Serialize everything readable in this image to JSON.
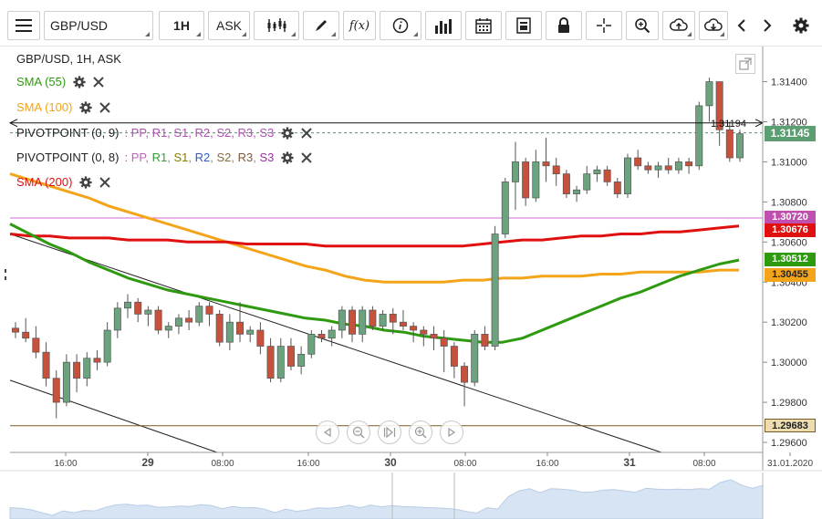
{
  "toolbar": {
    "symbol": "GBP/USD",
    "timeframe": "1H",
    "price_type": "ASK",
    "fx_label": "f(x)"
  },
  "legend": {
    "symbol_line": "GBP/USD, 1H, ASK",
    "sma55": {
      "label": "SMA (55)",
      "color": "#2e9a10"
    },
    "sma100": {
      "label": "SMA (100)",
      "color": "#f4a418"
    },
    "pivot9": {
      "label": "PIVOTPOINT (0, 9)",
      "params": ": PP, R1, S1, R2, S2, R3, S3"
    },
    "pivot8": {
      "label": "PIVOTPOINT (0, 8)",
      "params_prefix": ": ",
      "items": [
        {
          "text": "PP",
          "color": "#c060c0"
        },
        {
          "text": "R1",
          "color": "#3a9a3a"
        },
        {
          "text": "S1",
          "color": "#8a7a00"
        },
        {
          "text": "R2",
          "color": "#3060c0"
        },
        {
          "text": "S2",
          "color": "#8a6a40"
        },
        {
          "text": "R3",
          "color": "#7a5a3a"
        },
        {
          "text": "S3",
          "color": "#9a30a0"
        }
      ]
    },
    "sma200": {
      "label": "SMA (200)",
      "color": "#e01010"
    }
  },
  "price_axis": {
    "ticks": [
      "1.31400",
      "1.31200",
      "1.31000",
      "1.30800",
      "1.30600",
      "1.30400",
      "1.30200",
      "1.30000",
      "1.29800",
      "1.29600"
    ],
    "current_price": "1.31145",
    "crosshair_price": "1.31194",
    "tags": [
      {
        "value": "1.30720",
        "color": "#c050b0"
      },
      {
        "value": "1.30676",
        "color": "#e01010"
      },
      {
        "value": "1.30512",
        "color": "#2e9a10"
      },
      {
        "value": "1.30455",
        "color": "#f4a418"
      },
      {
        "value": "1.29683",
        "color": "#7a5a20"
      }
    ]
  },
  "time_axis": {
    "labels": [
      "16:00",
      "29",
      "08:00",
      "16:00",
      "30",
      "08:00",
      "16:00",
      "31",
      "08:00",
      "31.01.2020"
    ]
  },
  "chart_data": {
    "type": "candlestick",
    "ylim": [
      1.2955,
      1.3158
    ],
    "candles": [
      [
        1.3017,
        1.302,
        1.3012,
        1.3015
      ],
      [
        1.3015,
        1.3022,
        1.301,
        1.3012
      ],
      [
        1.3012,
        1.3018,
        1.3002,
        1.3005
      ],
      [
        1.3005,
        1.301,
        1.2988,
        1.2992
      ],
      [
        1.2992,
        1.2996,
        1.2972,
        1.298
      ],
      [
        1.298,
        1.3004,
        1.2978,
        1.3
      ],
      [
        1.3,
        1.3004,
        1.2985,
        1.2992
      ],
      [
        1.2992,
        1.3005,
        1.2988,
        1.3002
      ],
      [
        1.3002,
        1.3006,
        1.2996,
        1.3
      ],
      [
        1.3,
        1.302,
        1.2998,
        1.3016
      ],
      [
        1.3016,
        1.303,
        1.3012,
        1.3027
      ],
      [
        1.3027,
        1.3034,
        1.3022,
        1.303
      ],
      [
        1.303,
        1.3032,
        1.302,
        1.3024
      ],
      [
        1.3024,
        1.3028,
        1.3018,
        1.3026
      ],
      [
        1.3026,
        1.3028,
        1.3014,
        1.3016
      ],
      [
        1.3016,
        1.302,
        1.3012,
        1.3018
      ],
      [
        1.3018,
        1.3024,
        1.3014,
        1.3022
      ],
      [
        1.3022,
        1.3026,
        1.3016,
        1.302
      ],
      [
        1.302,
        1.303,
        1.3018,
        1.3028
      ],
      [
        1.3028,
        1.303,
        1.3018,
        1.3024
      ],
      [
        1.3024,
        1.3026,
        1.3008,
        1.301
      ],
      [
        1.301,
        1.3024,
        1.3006,
        1.302
      ],
      [
        1.302,
        1.303,
        1.301,
        1.3014
      ],
      [
        1.3014,
        1.3018,
        1.301,
        1.3016
      ],
      [
        1.3016,
        1.302,
        1.3004,
        1.3008
      ],
      [
        1.3008,
        1.3012,
        1.299,
        1.2992
      ],
      [
        1.2992,
        1.3012,
        1.299,
        1.3008
      ],
      [
        1.3008,
        1.3012,
        1.2996,
        1.2998
      ],
      [
        1.2998,
        1.3008,
        1.2994,
        1.3004
      ],
      [
        1.3004,
        1.3016,
        1.3002,
        1.3014
      ],
      [
        1.3014,
        1.3016,
        1.301,
        1.3012
      ],
      [
        1.3012,
        1.3018,
        1.3008,
        1.3016
      ],
      [
        1.3016,
        1.3028,
        1.3012,
        1.3026
      ],
      [
        1.3026,
        1.3028,
        1.301,
        1.3014
      ],
      [
        1.3014,
        1.3028,
        1.301,
        1.3026
      ],
      [
        1.3026,
        1.3028,
        1.3016,
        1.3018
      ],
      [
        1.3018,
        1.3026,
        1.3016,
        1.3024
      ],
      [
        1.3024,
        1.3027,
        1.3014,
        1.302
      ],
      [
        1.302,
        1.3026,
        1.3016,
        1.3018
      ],
      [
        1.3018,
        1.302,
        1.301,
        1.3016
      ],
      [
        1.3016,
        1.3018,
        1.3008,
        1.3014
      ],
      [
        1.3014,
        1.3018,
        1.3006,
        1.3012
      ],
      [
        1.3012,
        1.3016,
        1.2995,
        1.3008
      ],
      [
        1.3008,
        1.301,
        1.2992,
        1.2998
      ],
      [
        1.2998,
        1.3,
        1.2978,
        1.299
      ],
      [
        1.299,
        1.3016,
        1.2988,
        1.3014
      ],
      [
        1.3014,
        1.3018,
        1.3006,
        1.3008
      ],
      [
        1.3008,
        1.3068,
        1.3006,
        1.3064
      ],
      [
        1.3064,
        1.3092,
        1.3062,
        1.309
      ],
      [
        1.309,
        1.311,
        1.3076,
        1.31
      ],
      [
        1.31,
        1.3102,
        1.3078,
        1.3082
      ],
      [
        1.3082,
        1.3106,
        1.308,
        1.31
      ],
      [
        1.31,
        1.3112,
        1.309,
        1.3098
      ],
      [
        1.3098,
        1.3102,
        1.3088,
        1.3094
      ],
      [
        1.3094,
        1.3096,
        1.3082,
        1.3084
      ],
      [
        1.3084,
        1.3088,
        1.308,
        1.3086
      ],
      [
        1.3086,
        1.3098,
        1.3084,
        1.3094
      ],
      [
        1.3094,
        1.3098,
        1.309,
        1.3096
      ],
      [
        1.3096,
        1.3098,
        1.3088,
        1.309
      ],
      [
        1.309,
        1.3092,
        1.3082,
        1.3084
      ],
      [
        1.3084,
        1.3104,
        1.3082,
        1.3102
      ],
      [
        1.3102,
        1.3106,
        1.3096,
        1.3098
      ],
      [
        1.3098,
        1.31,
        1.3094,
        1.3096
      ],
      [
        1.3096,
        1.31,
        1.3092,
        1.3098
      ],
      [
        1.3098,
        1.3102,
        1.3094,
        1.3096
      ],
      [
        1.3096,
        1.3102,
        1.3094,
        1.31
      ],
      [
        1.31,
        1.3102,
        1.3094,
        1.3098
      ],
      [
        1.3098,
        1.313,
        1.3096,
        1.3128
      ],
      [
        1.3128,
        1.3142,
        1.312,
        1.314
      ],
      [
        1.314,
        1.314,
        1.3108,
        1.3116
      ],
      [
        1.3116,
        1.312,
        1.31,
        1.3102
      ],
      [
        1.3102,
        1.3116,
        1.31,
        1.3114
      ]
    ],
    "sma55": [
      1.3069,
      1.3064,
      1.3059,
      1.3055,
      1.305,
      1.3046,
      1.3042,
      1.3039,
      1.3036,
      1.3034,
      1.3032,
      1.303,
      1.3028,
      1.3026,
      1.3024,
      1.3022,
      1.3021,
      1.3019,
      1.3018,
      1.3016,
      1.3015,
      1.3013,
      1.3012,
      1.3011,
      1.301,
      1.301,
      1.3012,
      1.3016,
      1.302,
      1.3024,
      1.3028,
      1.3032,
      1.3035,
      1.3039,
      1.3043,
      1.3046,
      1.3049,
      1.3051
    ],
    "sma100": [
      1.3094,
      1.3091,
      1.3088,
      1.3085,
      1.3082,
      1.3078,
      1.3075,
      1.3072,
      1.3069,
      1.3066,
      1.3063,
      1.306,
      1.3057,
      1.3054,
      1.3051,
      1.3048,
      1.3046,
      1.3043,
      1.3041,
      1.304,
      1.304,
      1.304,
      1.304,
      1.3041,
      1.3041,
      1.3042,
      1.3042,
      1.3043,
      1.3043,
      1.3043,
      1.3044,
      1.3044,
      1.3045,
      1.3045,
      1.3045,
      1.3045,
      1.3046,
      1.3046
    ],
    "sma200": [
      1.3064,
      1.3063,
      1.3063,
      1.3062,
      1.3062,
      1.3062,
      1.3061,
      1.3061,
      1.3061,
      1.306,
      1.306,
      1.306,
      1.3059,
      1.3059,
      1.3059,
      1.3059,
      1.3058,
      1.3058,
      1.3058,
      1.3058,
      1.3058,
      1.3058,
      1.3058,
      1.3058,
      1.3059,
      1.306,
      1.3061,
      1.3061,
      1.3062,
      1.3063,
      1.3063,
      1.3064,
      1.3064,
      1.3065,
      1.3065,
      1.3066,
      1.3067,
      1.3068
    ],
    "pivot_lines": [
      {
        "value": 1.3072,
        "color": "#d66ad6"
      },
      {
        "value": 1.29683,
        "color": "#7a5a20"
      }
    ],
    "current_price": 1.31145,
    "crosshair_price": 1.31194
  }
}
